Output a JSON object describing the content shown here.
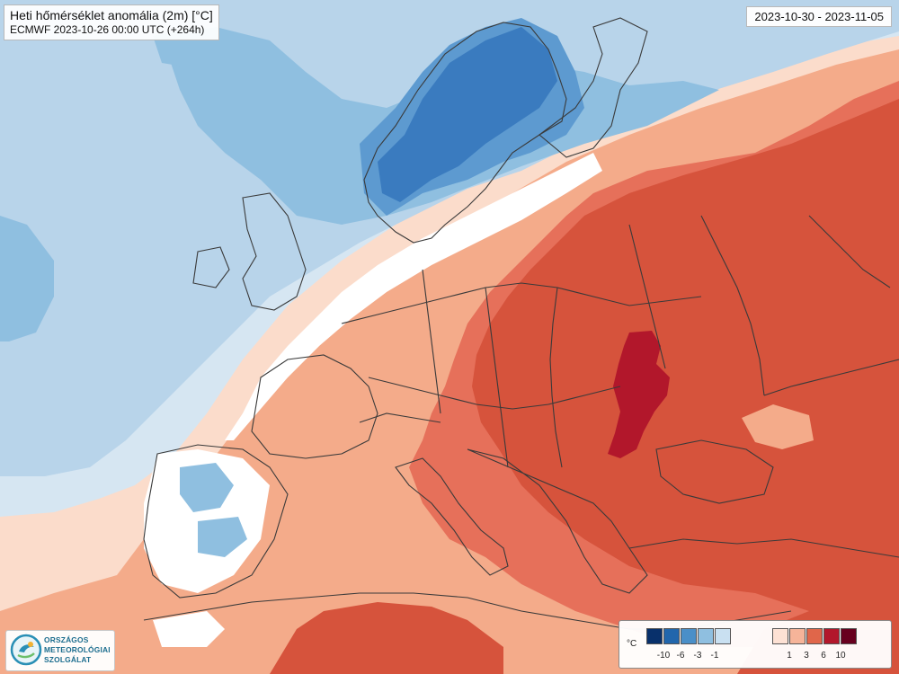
{
  "header": {
    "title": "Heti hőmérséklet anomália (2m) [°C]",
    "subtitle": "ECMWF 2023-10-26 00:00 UTC (+264h)"
  },
  "period": "2023-10-30 - 2023-11-05",
  "logo": {
    "lines": [
      "ORSZÁGOS",
      "METEOROLÓGIAI",
      "SZOLGÁLAT"
    ]
  },
  "legend": {
    "unit": "°C",
    "cold_colors": [
      "#08306b",
      "#2166ac",
      "#4a8fc8",
      "#8fbfe0",
      "#c9e0f1"
    ],
    "warm_colors": [
      "#fde1d4",
      "#f6b499",
      "#e0664a",
      "#b2172b",
      "#67001f"
    ],
    "cold_labels": [
      "-10",
      "-6",
      "-3",
      "-1"
    ],
    "warm_labels": [
      "1",
      "3",
      "6",
      "10"
    ]
  },
  "map_colors": {
    "ocean_cool": "#d6e6f2",
    "light_blue": "#b8d4ea",
    "mid_blue": "#8fbfe0",
    "blue": "#5d9ad0",
    "dark_blue": "#3a7bbf",
    "neutral": "#ffffff",
    "pale_warm": "#fbdccb",
    "light_warm": "#f4ab8a",
    "warm": "#e6705a",
    "red": "#d6533c",
    "dark_red": "#b2172b",
    "border": "#3a3a3a"
  }
}
